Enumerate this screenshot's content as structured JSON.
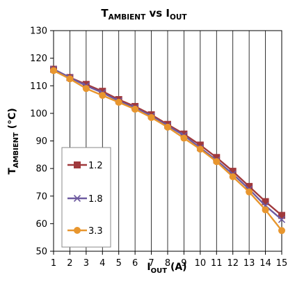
{
  "chart_data": {
    "type": "line",
    "title_main": "T",
    "title_sub1": "AMBIENT",
    "title_mid": " vs I",
    "title_sub2": "OUT",
    "xlabel_main": "I",
    "xlabel_sub": "OUT",
    "xlabel_rest": " (A)",
    "ylabel_main": "T",
    "ylabel_sub": "AMBIENT",
    "ylabel_rest": " (°C)",
    "x": [
      1,
      2,
      3,
      4,
      5,
      6,
      7,
      8,
      9,
      10,
      11,
      12,
      13,
      14,
      15
    ],
    "xlim": [
      1,
      15
    ],
    "ylim": [
      50,
      130
    ],
    "xticks": [
      1,
      2,
      3,
      4,
      5,
      6,
      7,
      8,
      9,
      10,
      11,
      12,
      13,
      14,
      15
    ],
    "yticks": [
      50,
      60,
      70,
      80,
      90,
      100,
      110,
      120,
      130
    ],
    "grid": "vertical",
    "legend_position": "bottom-left",
    "series": [
      {
        "name": "1.2",
        "marker": "square",
        "color": "#A0393C",
        "values": [
          116,
          113,
          110.5,
          108,
          105,
          102.5,
          99.5,
          96,
          92.5,
          88.5,
          84,
          79,
          73.5,
          68,
          63
        ]
      },
      {
        "name": "1.8",
        "marker": "x",
        "color": "#6E5AA0",
        "values": [
          116,
          113,
          110,
          107.5,
          104.5,
          102,
          99,
          95.5,
          92,
          87.5,
          83,
          78,
          72.5,
          66.5,
          61.5
        ]
      },
      {
        "name": "3.3",
        "marker": "circle",
        "color": "#E8962E",
        "values": [
          115.5,
          112.5,
          109,
          106.5,
          104,
          101.5,
          98.5,
          95,
          91,
          87,
          82.5,
          77,
          71.5,
          65,
          57.5
        ]
      }
    ]
  }
}
